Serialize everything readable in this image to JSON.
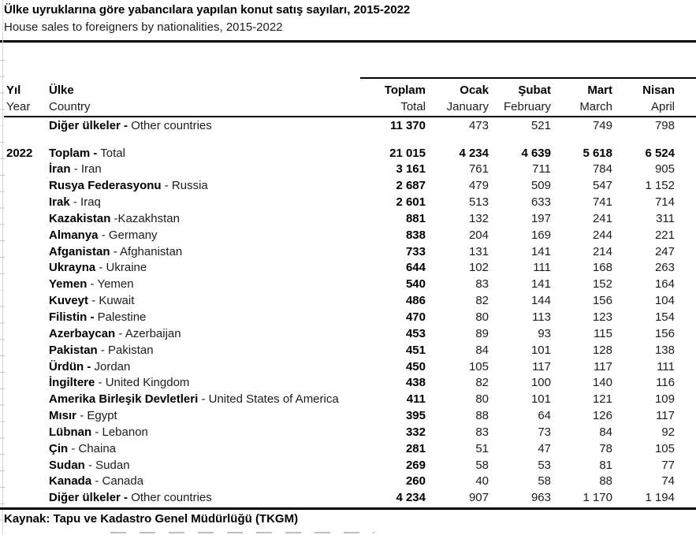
{
  "title": "Ülke uyruklarına göre yabancılara yapılan konut satış sayıları, 2015-2022",
  "subtitle": "House sales to foreigners by nationalities, 2015-2022",
  "header": {
    "year": {
      "tr": "Yıl",
      "en": "Year"
    },
    "country": {
      "tr": "Ülke",
      "en": "Country"
    },
    "months": [
      {
        "tr": "Toplam",
        "en": "Total"
      },
      {
        "tr": "Ocak",
        "en": "January"
      },
      {
        "tr": "Şubat",
        "en": "February"
      },
      {
        "tr": "Mart",
        "en": "March"
      },
      {
        "tr": "Nisan",
        "en": "April"
      }
    ]
  },
  "rows": [
    {
      "year": "",
      "tr": "Diğer ülkeler -",
      "en": "Other countries",
      "values": [
        "11 370",
        "473",
        "521",
        "749",
        "798"
      ],
      "bold_all": false,
      "gap_before": false
    },
    {
      "year": "2022",
      "tr": "Toplam -",
      "en": "Total",
      "values": [
        "21 015",
        "4 234",
        "4 639",
        "5 618",
        "6 524"
      ],
      "bold_all": true,
      "gap_before": true
    },
    {
      "year": "",
      "tr": "İran",
      "en": "- Iran",
      "values": [
        "3 161",
        "761",
        "711",
        "784",
        "905"
      ],
      "bold_all": false,
      "gap_before": false
    },
    {
      "year": "",
      "tr": "Rusya Federasyonu",
      "en": "- Russia",
      "values": [
        "2 687",
        "479",
        "509",
        "547",
        "1 152"
      ],
      "bold_all": false,
      "gap_before": false
    },
    {
      "year": "",
      "tr": "Irak",
      "en": "- Iraq",
      "values": [
        "2 601",
        "513",
        "633",
        "741",
        "714"
      ],
      "bold_all": false,
      "gap_before": false
    },
    {
      "year": "",
      "tr": "Kazakistan",
      "en": "-Kazakhstan",
      "values": [
        "881",
        "132",
        "197",
        "241",
        "311"
      ],
      "bold_all": false,
      "gap_before": false
    },
    {
      "year": "",
      "tr": "Almanya",
      "en": "- Germany",
      "values": [
        "838",
        "204",
        "169",
        "244",
        "221"
      ],
      "bold_all": false,
      "gap_before": false
    },
    {
      "year": "",
      "tr": "Afganistan",
      "en": "- Afghanistan",
      "values": [
        "733",
        "131",
        "141",
        "214",
        "247"
      ],
      "bold_all": false,
      "gap_before": false
    },
    {
      "year": "",
      "tr": "Ukrayna",
      "en": "- Ukraine",
      "values": [
        "644",
        "102",
        "111",
        "168",
        "263"
      ],
      "bold_all": false,
      "gap_before": false
    },
    {
      "year": "",
      "tr": "Yemen",
      "en": "- Yemen",
      "values": [
        "540",
        "83",
        "141",
        "152",
        "164"
      ],
      "bold_all": false,
      "gap_before": false
    },
    {
      "year": "",
      "tr": "Kuveyt",
      "en": "- Kuwait",
      "values": [
        "486",
        "82",
        "144",
        "156",
        "104"
      ],
      "bold_all": false,
      "gap_before": false
    },
    {
      "year": "",
      "tr": "Filistin -",
      "en": "Palestine",
      "values": [
        "470",
        "80",
        "113",
        "123",
        "154"
      ],
      "bold_all": false,
      "gap_before": false
    },
    {
      "year": "",
      "tr": "Azerbaycan",
      "en": "- Azerbaijan",
      "values": [
        "453",
        "89",
        "93",
        "115",
        "156"
      ],
      "bold_all": false,
      "gap_before": false
    },
    {
      "year": "",
      "tr": "Pakistan",
      "en": "- Pakistan",
      "values": [
        "451",
        "84",
        "101",
        "128",
        "138"
      ],
      "bold_all": false,
      "gap_before": false
    },
    {
      "year": "",
      "tr": "Ürdün -",
      "en": "Jordan",
      "values": [
        "450",
        "105",
        "117",
        "117",
        "111"
      ],
      "bold_all": false,
      "gap_before": false
    },
    {
      "year": "",
      "tr": "İngiltere",
      "en": "- United Kingdom",
      "values": [
        "438",
        "82",
        "100",
        "140",
        "116"
      ],
      "bold_all": false,
      "gap_before": false
    },
    {
      "year": "",
      "tr": "Amerika Birleşik Devletleri",
      "en": "- United States of America",
      "values": [
        "411",
        "80",
        "101",
        "121",
        "109"
      ],
      "bold_all": false,
      "gap_before": false
    },
    {
      "year": "",
      "tr": "Mısır",
      "en": "- Egypt",
      "values": [
        "395",
        "88",
        "64",
        "126",
        "117"
      ],
      "bold_all": false,
      "gap_before": false
    },
    {
      "year": "",
      "tr": "Lübnan",
      "en": "- Lebanon",
      "values": [
        "332",
        "83",
        "73",
        "84",
        "92"
      ],
      "bold_all": false,
      "gap_before": false
    },
    {
      "year": "",
      "tr": "Çin",
      "en": "- Chaina",
      "values": [
        "281",
        "51",
        "47",
        "78",
        "105"
      ],
      "bold_all": false,
      "gap_before": false
    },
    {
      "year": "",
      "tr": "Sudan",
      "en": "- Sudan",
      "values": [
        "269",
        "58",
        "53",
        "81",
        "77"
      ],
      "bold_all": false,
      "gap_before": false
    },
    {
      "year": "",
      "tr": "Kanada",
      "en": "- Canada",
      "values": [
        "260",
        "40",
        "58",
        "88",
        "74"
      ],
      "bold_all": false,
      "gap_before": false
    },
    {
      "year": "",
      "tr": "Diğer ülkeler -",
      "en": "Other countries",
      "values": [
        "4 234",
        "907",
        "963",
        "1 170",
        "1 194"
      ],
      "bold_all": false,
      "gap_before": false
    }
  ],
  "source": "Kaynak: Tapu ve Kadastro Genel Müdürlüğü (TKGM)"
}
